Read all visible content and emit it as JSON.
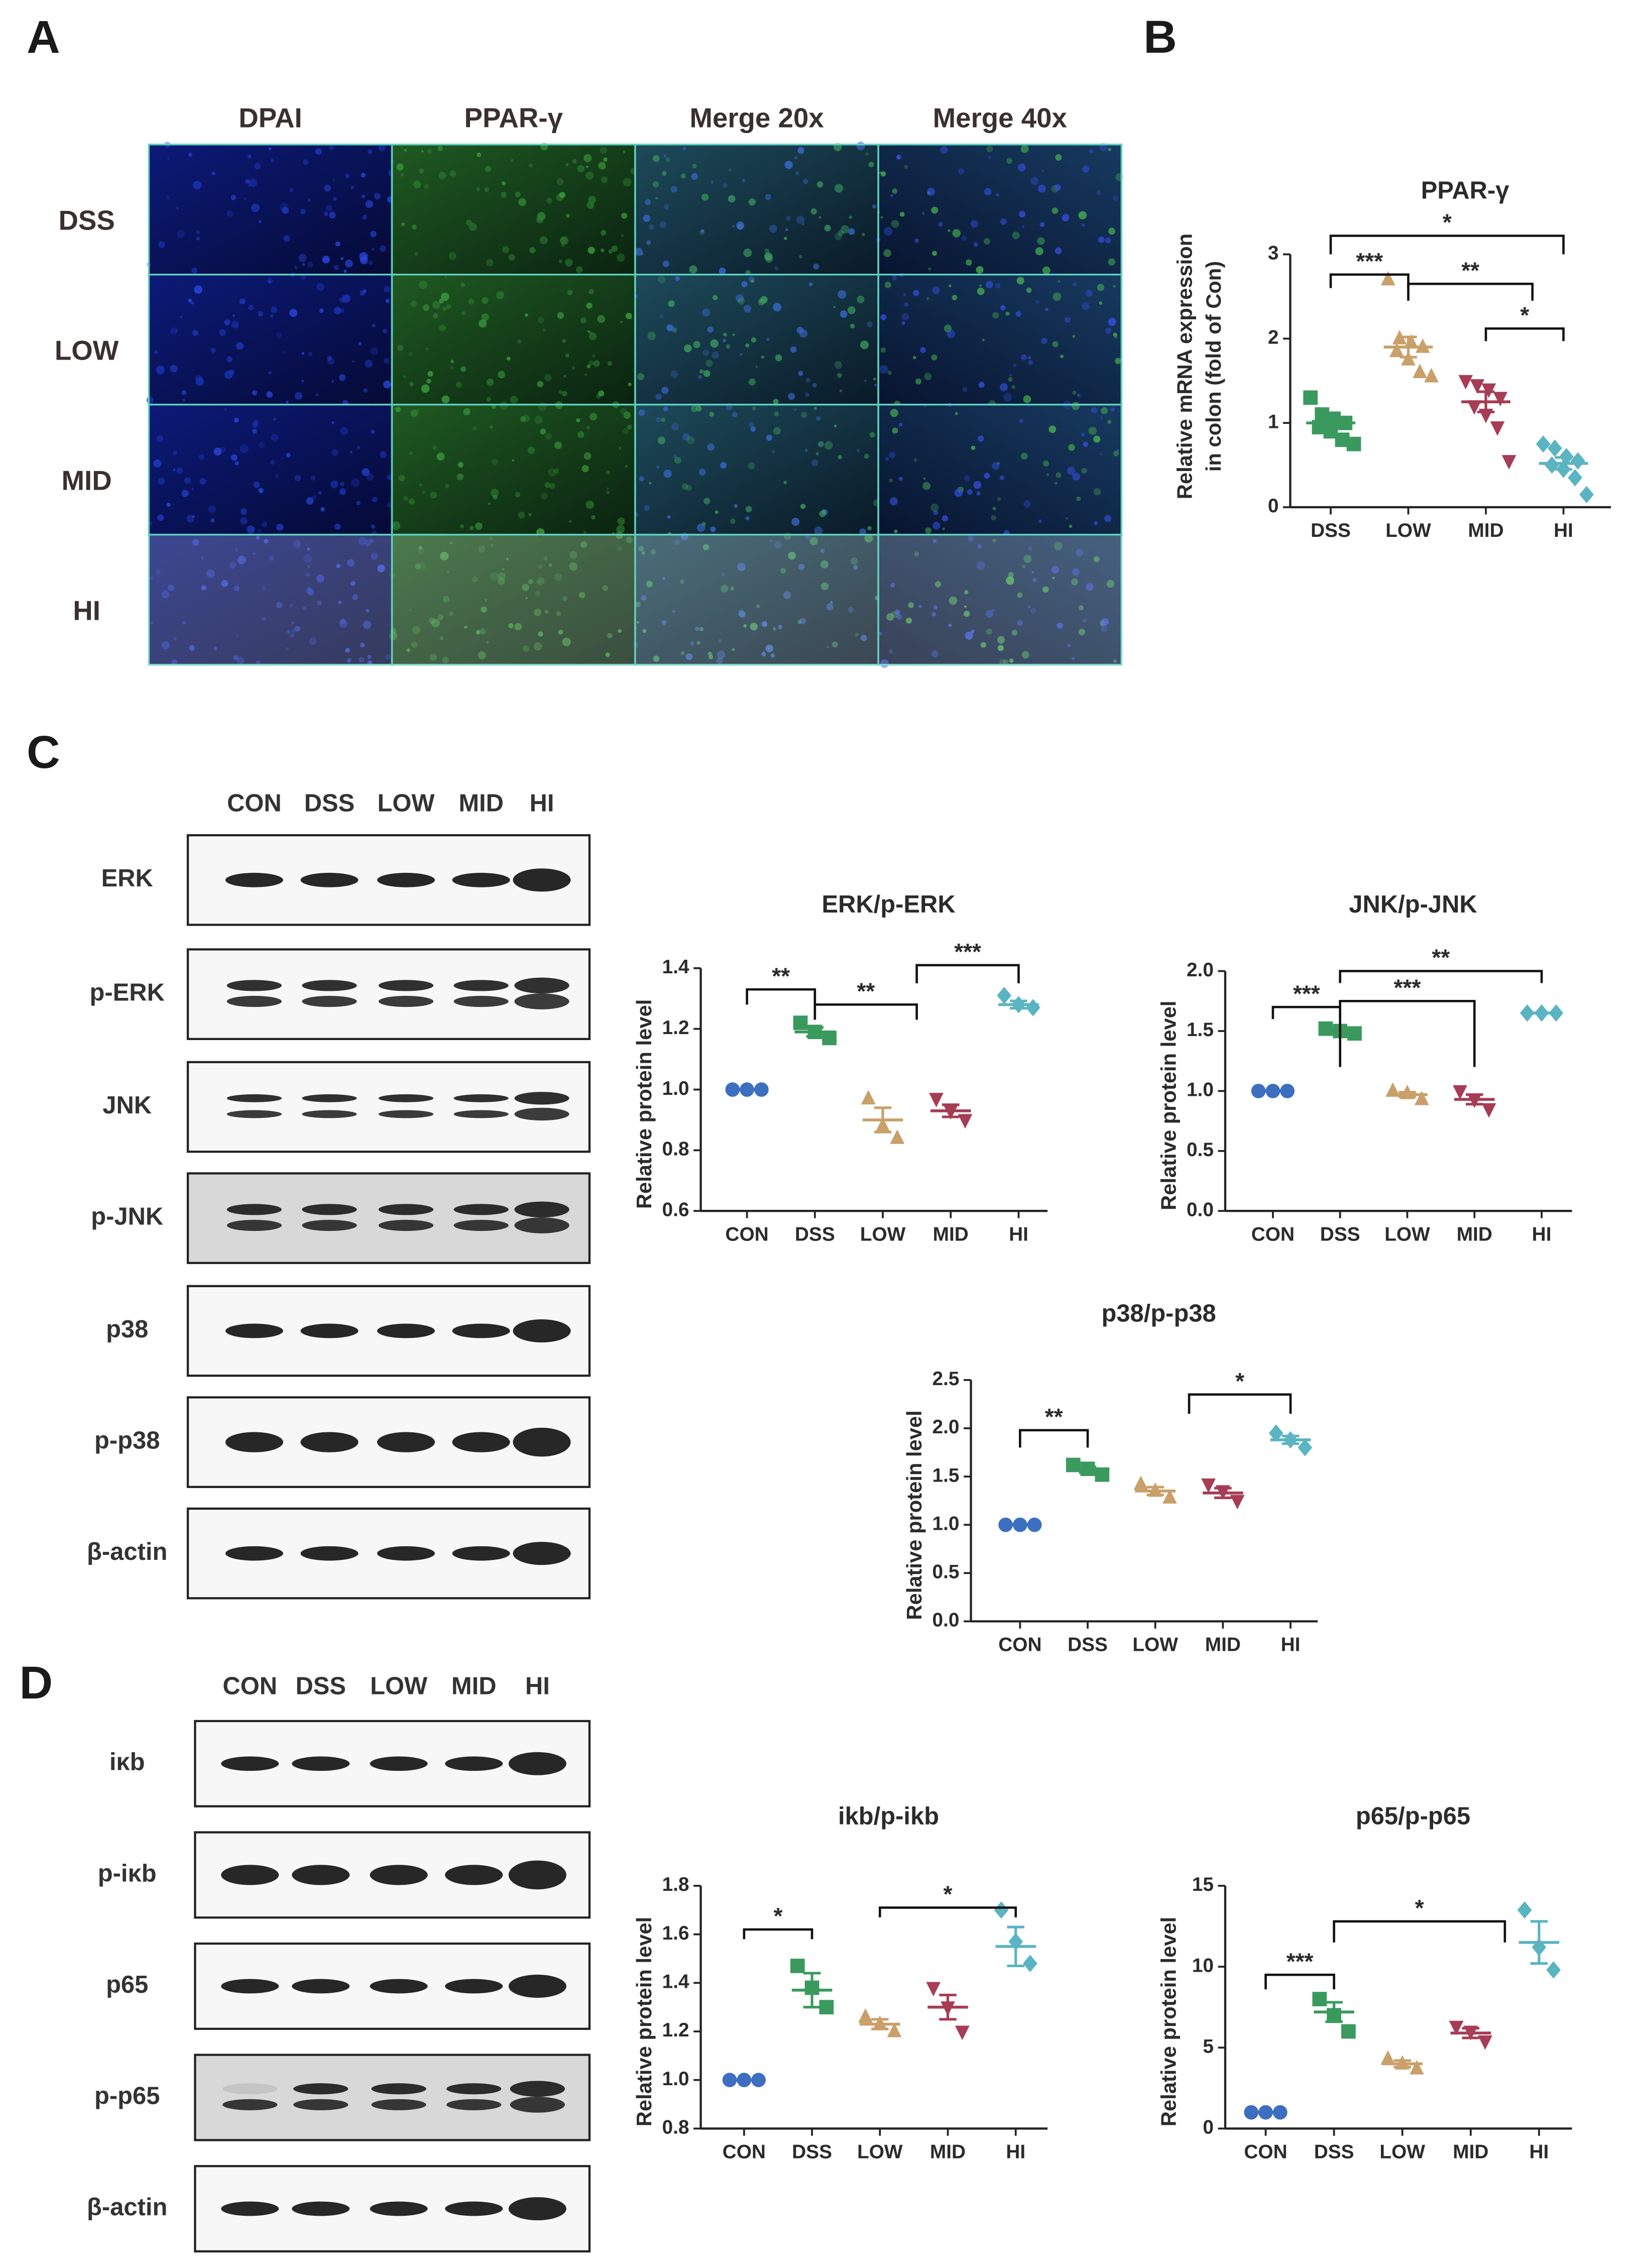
{
  "panel_labels": [
    "A",
    "B",
    "C",
    "D"
  ],
  "panel_A": {
    "columns": [
      "DPAI",
      "PPAR-γ",
      "Merge 20x",
      "Merge 40x"
    ],
    "rows": [
      "DSS",
      "LOW",
      "MID",
      "HI"
    ]
  },
  "panel_C": {
    "lanes": [
      "CON",
      "DSS",
      "LOW",
      "MID",
      "HI"
    ],
    "rows": [
      "ERK",
      "p-ERK",
      "JNK",
      "p-JNK",
      "p38",
      "p-p38",
      "β-actin"
    ]
  },
  "panel_D": {
    "lanes": [
      "CON",
      "DSS",
      "LOW",
      "MID",
      "HI"
    ],
    "rows": [
      "iκb",
      "p-iκb",
      "p65",
      "p-p65",
      "β-actin"
    ]
  },
  "chart_data": [
    {
      "type": "dot",
      "title": "PPAR-γ",
      "ylabel": [
        "Relative mRNA expression",
        "in colon  (fold of Con)"
      ],
      "categories": [
        "DSS",
        "LOW",
        "MID",
        "HI"
      ],
      "ylim": [
        0,
        3
      ],
      "yticks": [
        0,
        1,
        2,
        3
      ],
      "groups": [
        {
          "color": "#3a9a5e",
          "marker": "square",
          "points": [
            1.3,
            1.1,
            1.05,
            1.0,
            0.95,
            0.9,
            0.8,
            0.75
          ],
          "mean": 1.0,
          "sem": 0.07
        },
        {
          "color": "#c9a06a",
          "marker": "triangle-up",
          "points": [
            2.7,
            2.0,
            1.95,
            1.9,
            1.85,
            1.75,
            1.6,
            1.55
          ],
          "mean": 1.9,
          "sem": 0.12
        },
        {
          "color": "#a63c55",
          "marker": "triangle-down",
          "points": [
            1.5,
            1.45,
            1.4,
            1.3,
            1.2,
            1.1,
            0.95,
            0.55
          ],
          "mean": 1.25,
          "sem": 0.12
        },
        {
          "color": "#5ab4c2",
          "marker": "diamond",
          "points": [
            0.75,
            0.7,
            0.6,
            0.55,
            0.5,
            0.45,
            0.35,
            0.15
          ],
          "mean": 0.52,
          "sem": 0.07
        }
      ],
      "annotations": [
        "*",
        "***",
        "**",
        "*"
      ]
    },
    {
      "type": "dot",
      "title": "ERK/p-ERK",
      "ylabel": "Relative protein level",
      "categories": [
        "CON",
        "DSS",
        "LOW",
        "MID",
        "HI"
      ],
      "ylim": [
        0.6,
        1.4
      ],
      "yticks": [
        0.6,
        0.8,
        {
          "value": 1,
          "label": "1.0"
        },
        1.2,
        1.4
      ],
      "groups": [
        {
          "color": "#3d6fc0",
          "marker": "circle",
          "points": [
            1,
            1,
            1
          ],
          "mean": 1,
          "sem": 0
        },
        {
          "color": "#3a9a5e",
          "marker": "square",
          "points": [
            1.22,
            1.19,
            1.17
          ],
          "mean": 1.19,
          "sem": 0.015
        },
        {
          "color": "#c9a06a",
          "marker": "triangle-up",
          "points": [
            0.97,
            0.88,
            0.84
          ],
          "mean": 0.9,
          "sem": 0.04
        },
        {
          "color": "#a63c55",
          "marker": "triangle-down",
          "points": [
            0.97,
            0.93,
            0.9
          ],
          "mean": 0.93,
          "sem": 0.02
        },
        {
          "color": "#5ab4c2",
          "marker": "diamond",
          "points": [
            1.31,
            1.28,
            1.27
          ],
          "mean": 1.28,
          "sem": 0.012
        }
      ],
      "annotations": [
        "**",
        "**",
        "***"
      ]
    },
    {
      "type": "dot",
      "title": "JNK/p-JNK",
      "ylabel": "Relative protein level",
      "categories": [
        "CON",
        "DSS",
        "LOW",
        "MID",
        "HI"
      ],
      "ylim": [
        0,
        2
      ],
      "yticks": [
        {
          "value": 0,
          "label": "0.0"
        },
        0.5,
        {
          "value": 1,
          "label": "1.0"
        },
        1.5,
        {
          "value": 2,
          "label": "2.0"
        }
      ],
      "groups": [
        {
          "color": "#3d6fc0",
          "marker": "circle",
          "points": [
            1,
            1,
            1
          ],
          "mean": 1,
          "sem": 0
        },
        {
          "color": "#3a9a5e",
          "marker": "square",
          "points": [
            1.52,
            1.5,
            1.48
          ],
          "mean": 1.5,
          "sem": 0.012
        },
        {
          "color": "#c9a06a",
          "marker": "triangle-up",
          "points": [
            1.0,
            0.98,
            0.93
          ],
          "mean": 0.97,
          "sem": 0.02
        },
        {
          "color": "#a63c55",
          "marker": "triangle-down",
          "points": [
            1.0,
            0.93,
            0.85
          ],
          "mean": 0.93,
          "sem": 0.04
        },
        {
          "color": "#5ab4c2",
          "marker": "diamond",
          "points": [
            1.65,
            1.65,
            1.65
          ],
          "mean": 1.65,
          "sem": 0
        }
      ],
      "annotations": [
        "***",
        "***",
        "**"
      ]
    },
    {
      "type": "dot",
      "title": "p38/p-p38",
      "ylabel": "Relative protein level",
      "categories": [
        "CON",
        "DSS",
        "LOW",
        "MID",
        "HI"
      ],
      "ylim": [
        0,
        2.5
      ],
      "yticks": [
        {
          "value": 0,
          "label": "0.0"
        },
        0.5,
        {
          "value": 1,
          "label": "1.0"
        },
        1.5,
        {
          "value": 2,
          "label": "2.0"
        },
        2.5
      ],
      "groups": [
        {
          "color": "#3d6fc0",
          "marker": "circle",
          "points": [
            1,
            1,
            1
          ],
          "mean": 1,
          "sem": 0
        },
        {
          "color": "#3a9a5e",
          "marker": "square",
          "points": [
            1.62,
            1.58,
            1.52
          ],
          "mean": 1.57,
          "sem": 0.03
        },
        {
          "color": "#c9a06a",
          "marker": "triangle-up",
          "points": [
            1.42,
            1.35,
            1.28
          ],
          "mean": 1.35,
          "sem": 0.04
        },
        {
          "color": "#a63c55",
          "marker": "triangle-down",
          "points": [
            1.42,
            1.35,
            1.25
          ],
          "mean": 1.33,
          "sem": 0.05
        },
        {
          "color": "#5ab4c2",
          "marker": "diamond",
          "points": [
            1.95,
            1.88,
            1.8
          ],
          "mean": 1.88,
          "sem": 0.04
        }
      ],
      "annotations": [
        "**",
        "*"
      ]
    },
    {
      "type": "dot",
      "title": "ikb/p-ikb",
      "ylabel": "Relative protein level",
      "categories": [
        "CON",
        "DSS",
        "LOW",
        "MID",
        "HI"
      ],
      "ylim": [
        0.8,
        1.8
      ],
      "yticks": [
        0.8,
        {
          "value": 1,
          "label": "1.0"
        },
        1.2,
        1.4,
        1.6,
        1.8
      ],
      "groups": [
        {
          "color": "#3d6fc0",
          "marker": "circle",
          "points": [
            1,
            1,
            1
          ],
          "mean": 1,
          "sem": 0
        },
        {
          "color": "#3a9a5e",
          "marker": "square",
          "points": [
            1.47,
            1.38,
            1.3
          ],
          "mean": 1.37,
          "sem": 0.07
        },
        {
          "color": "#c9a06a",
          "marker": "triangle-up",
          "points": [
            1.26,
            1.23,
            1.2
          ],
          "mean": 1.23,
          "sem": 0.02
        },
        {
          "color": "#a63c55",
          "marker": "triangle-down",
          "points": [
            1.38,
            1.3,
            1.2
          ],
          "mean": 1.3,
          "sem": 0.05
        },
        {
          "color": "#5ab4c2",
          "marker": "diamond",
          "points": [
            1.7,
            1.57,
            1.48
          ],
          "mean": 1.55,
          "sem": 0.08
        }
      ],
      "annotations": [
        "*",
        "*"
      ]
    },
    {
      "type": "dot",
      "title": "p65/p-p65",
      "ylabel": "Relative protein level",
      "categories": [
        "CON",
        "DSS",
        "LOW",
        "MID",
        "HI"
      ],
      "ylim": [
        0,
        15
      ],
      "yticks": [
        0,
        5,
        10,
        15
      ],
      "groups": [
        {
          "color": "#3d6fc0",
          "marker": "circle",
          "points": [
            1,
            1,
            1
          ],
          "mean": 1,
          "sem": 0
        },
        {
          "color": "#3a9a5e",
          "marker": "square",
          "points": [
            8,
            7,
            6
          ],
          "mean": 7.2,
          "sem": 0.6
        },
        {
          "color": "#c9a06a",
          "marker": "triangle-up",
          "points": [
            4.3,
            4,
            3.7
          ],
          "mean": 4,
          "sem": 0.2
        },
        {
          "color": "#a63c55",
          "marker": "triangle-down",
          "points": [
            6.3,
            6,
            5.4
          ],
          "mean": 5.9,
          "sem": 0.3
        },
        {
          "color": "#5ab4c2",
          "marker": "diamond",
          "points": [
            13.5,
            11.2,
            9.8
          ],
          "mean": 11.5,
          "sem": 1.3
        }
      ],
      "annotations": [
        "***",
        "*"
      ]
    }
  ]
}
